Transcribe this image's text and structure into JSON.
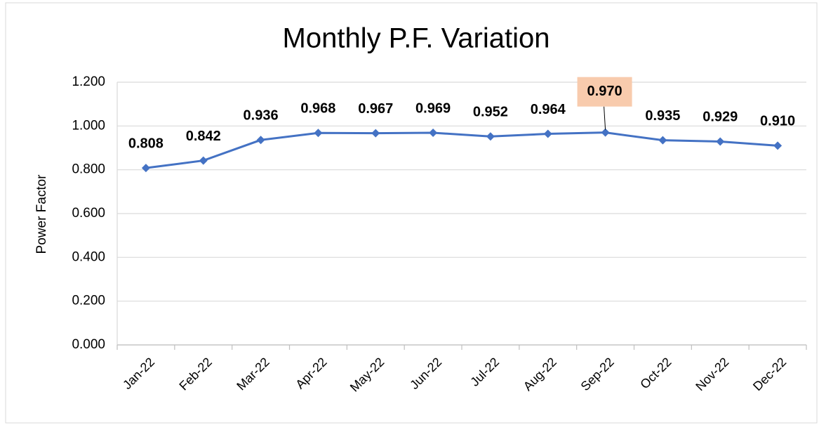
{
  "chart_data": {
    "type": "line",
    "title": "Monthly P.F. Variation",
    "y_label": "Power Factor",
    "categories": [
      "Jan-22",
      "Feb-22",
      "Mar-22",
      "Apr-22",
      "May-22",
      "Jun-22",
      "Jul-22",
      "Aug-22",
      "Sep-22",
      "Oct-22",
      "Nov-22",
      "Dec-22"
    ],
    "series": [
      {
        "name": "Power Factor",
        "color": "#4472c4",
        "values": [
          0.808,
          0.842,
          0.936,
          0.968,
          0.967,
          0.969,
          0.952,
          0.964,
          0.97,
          0.935,
          0.929,
          0.91
        ],
        "value_labels": [
          "0.808",
          "0.842",
          "0.936",
          "0.968",
          "0.967",
          "0.969",
          "0.952",
          "0.964",
          "0.970",
          "0.935",
          "0.929",
          "0.910"
        ]
      }
    ],
    "ylim": [
      0,
      1.2
    ],
    "yticks": [
      {
        "value": 0,
        "label": "0.000"
      },
      {
        "value": 0.2,
        "label": "0.200"
      },
      {
        "value": 0.4,
        "label": "0.400"
      },
      {
        "value": 0.6,
        "label": "0.600"
      },
      {
        "value": 0.8,
        "label": "0.800"
      },
      {
        "value": 1.0,
        "label": "1.000"
      },
      {
        "value": 1.2,
        "label": "1.200"
      }
    ],
    "grid": true,
    "highlight_index": 8,
    "highlight_color": "#f8cbad"
  }
}
